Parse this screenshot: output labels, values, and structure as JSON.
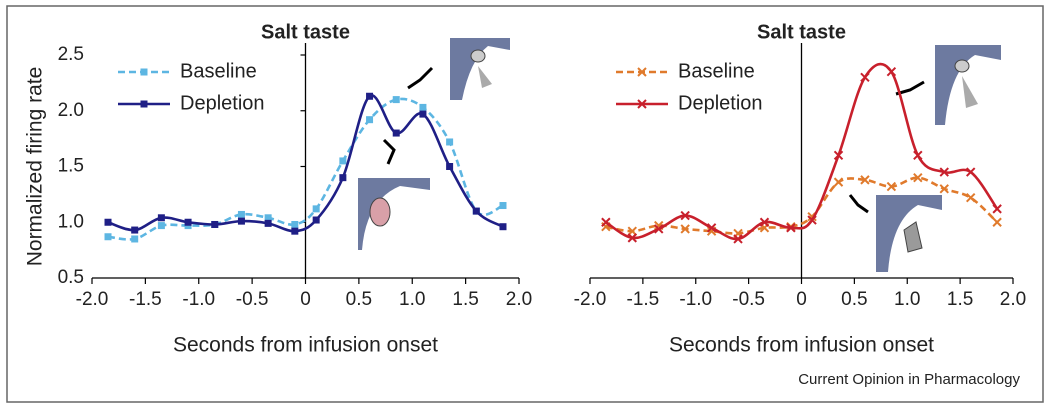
{
  "chart_data": [
    {
      "type": "line",
      "title": "Salt taste",
      "xlabel": "Seconds from infusion onset",
      "ylabel": "Normalized firing rate",
      "x": [
        -1.85,
        -1.6,
        -1.35,
        -1.1,
        -0.85,
        -0.6,
        -0.35,
        -0.1,
        0.1,
        0.35,
        0.6,
        0.85,
        1.1,
        1.35,
        1.6,
        1.85
      ],
      "series": [
        {
          "name": "Baseline",
          "color": "#5db6e2",
          "linestyle": "dashed",
          "marker": "square",
          "values": [
            0.87,
            0.85,
            0.97,
            0.97,
            0.98,
            1.07,
            1.04,
            0.98,
            1.12,
            1.55,
            1.92,
            2.1,
            2.03,
            1.72,
            1.1,
            1.15
          ]
        },
        {
          "name": "Depletion",
          "color": "#1f1f86",
          "linestyle": "solid",
          "marker": "square",
          "values": [
            1.0,
            0.93,
            1.04,
            1.0,
            0.98,
            1.01,
            0.99,
            0.92,
            1.02,
            1.4,
            2.13,
            1.8,
            1.97,
            1.5,
            1.1,
            0.96
          ]
        }
      ],
      "xlim": [
        -2.0,
        2.0
      ],
      "xticks": [
        {
          "value": -2,
          "label": "-2.0"
        },
        {
          "value": -1.5,
          "label": "-1.5"
        },
        {
          "value": -1,
          "label": "-1.0"
        },
        {
          "value": -0.5,
          "label": "-0.5"
        },
        {
          "value": 0,
          "label": "0"
        },
        {
          "value": 0.5,
          "label": "0.5"
        },
        {
          "value": 1,
          "label": "1.0"
        },
        {
          "value": 1.5,
          "label": "1.5"
        },
        {
          "value": 2,
          "label": "2.0"
        }
      ],
      "ylim": [
        0.5,
        2.5
      ],
      "yticks": [
        0.5,
        {
          "value": 1,
          "label": "1.0"
        },
        1.5,
        {
          "value": 2,
          "label": "2.0"
        },
        2.5
      ],
      "legend": "upper left"
    },
    {
      "type": "line",
      "title": "Salt taste",
      "xlabel": "Seconds from infusion onset",
      "x": [
        -1.85,
        -1.6,
        -1.35,
        -1.1,
        -0.85,
        -0.6,
        -0.35,
        -0.1,
        0.1,
        0.35,
        0.6,
        0.85,
        1.1,
        1.35,
        1.6,
        1.85
      ],
      "series": [
        {
          "name": "Baseline",
          "color": "#e07a2c",
          "linestyle": "dashed",
          "marker": "x",
          "values": [
            0.96,
            0.92,
            0.97,
            0.94,
            0.92,
            0.9,
            0.95,
            0.96,
            1.05,
            1.36,
            1.38,
            1.32,
            1.4,
            1.3,
            1.22,
            1.0
          ]
        },
        {
          "name": "Depletion",
          "color": "#c8202c",
          "linestyle": "solid",
          "marker": "x",
          "values": [
            1.0,
            0.86,
            0.94,
            1.06,
            0.95,
            0.85,
            1.0,
            0.95,
            1.02,
            1.6,
            2.3,
            2.35,
            1.6,
            1.45,
            1.45,
            1.12
          ]
        }
      ],
      "xlim": [
        -2.0,
        2.0
      ],
      "xticks": [
        {
          "value": -2,
          "label": "-2.0"
        },
        {
          "value": -1.5,
          "label": "-1.5"
        },
        {
          "value": -1,
          "label": "-1.0"
        },
        {
          "value": -0.5,
          "label": "-0.5"
        },
        {
          "value": 0,
          "label": "0"
        },
        {
          "value": 0.5,
          "label": "0.5"
        },
        {
          "value": 1,
          "label": "1.0"
        },
        {
          "value": 1.5,
          "label": "1.5"
        },
        {
          "value": 2,
          "label": "2.0"
        }
      ],
      "ylim": [
        0.5,
        2.5
      ],
      "legend": "upper left"
    }
  ],
  "source": "Current Opinion in Pharmacology"
}
